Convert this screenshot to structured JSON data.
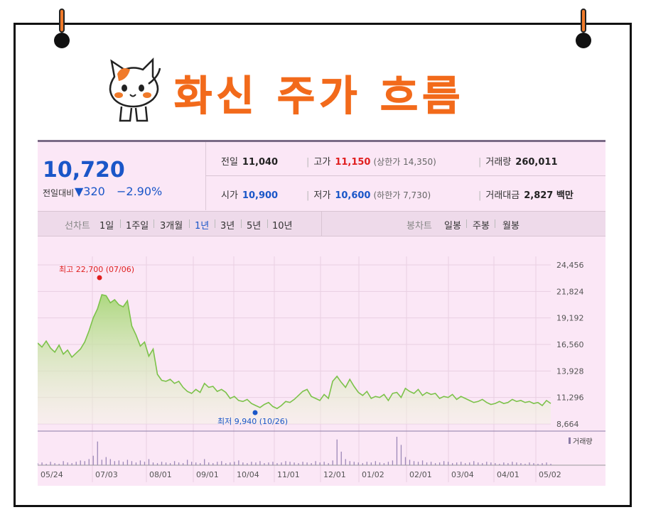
{
  "header": {
    "title": "화신 주가 흐름"
  },
  "stock": {
    "price": "10,720",
    "diff_label": "전일대비",
    "diff_value": "▼320",
    "diff_pct": "−2.90%",
    "prev_label": "전일",
    "prev_value": "11,040",
    "open_label": "시가",
    "open_value": "10,900",
    "high_label": "고가",
    "high_value": "11,150",
    "upper_limit": "(상한가 14,350)",
    "low_label": "저가",
    "low_value": "10,600",
    "lower_limit": "(하한가 7,730)",
    "volume_label": "거래량",
    "volume_value": "260,011",
    "amount_label": "거래대금",
    "amount_value": "2,827 백만"
  },
  "toolbar": {
    "line_label": "선차트",
    "periods": [
      "1일",
      "1주일",
      "3개월",
      "1년",
      "3년",
      "5년",
      "10년"
    ],
    "active_period": "1년",
    "candle_label": "봉차트",
    "candles": [
      "일봉",
      "주봉",
      "월봉"
    ]
  },
  "colors": {
    "up": "#e02020",
    "down": "#1a56c8",
    "line": "#7cc24a",
    "accent": "#f26a1b"
  },
  "chart_data": {
    "type": "area",
    "y_ticks": [
      "24,456",
      "21,824",
      "19,192",
      "16,560",
      "13,928",
      "11,296",
      "8,664"
    ],
    "ylim": [
      8664,
      24456
    ],
    "x_ticks": [
      "05/24",
      "07/03",
      "08/01",
      "09/01",
      "10/04",
      "11/01",
      "12/01",
      "01/02",
      "02/01",
      "03/04",
      "04/01",
      "05/02"
    ],
    "annotations": {
      "high": "최고 22,700 (07/06)",
      "low": "최저 9,940 (10/26)"
    },
    "volume_label": "거래량",
    "x": [
      0,
      1,
      2,
      3,
      4,
      5,
      6,
      7,
      8,
      9,
      10,
      11,
      12,
      13,
      14,
      15,
      16,
      17,
      18,
      19,
      20,
      21,
      22,
      23,
      24,
      25,
      26,
      27,
      28,
      29,
      30,
      31,
      32,
      33,
      34,
      35,
      36,
      37,
      38,
      39,
      40,
      41,
      42,
      43,
      44,
      45,
      46,
      47,
      48,
      49,
      50,
      51,
      52,
      53,
      54,
      55,
      56,
      57,
      58,
      59,
      60,
      61,
      62,
      63,
      64,
      65,
      66,
      67,
      68,
      69,
      70,
      71,
      72,
      73,
      74,
      75,
      76,
      77,
      78,
      79,
      80,
      81,
      82,
      83,
      84,
      85,
      86,
      87,
      88,
      89,
      90,
      91,
      92,
      93,
      94,
      95,
      96,
      97,
      98,
      99,
      100,
      101,
      102,
      103,
      104,
      105,
      106,
      107,
      108,
      109,
      110,
      111,
      112,
      113,
      114,
      115,
      116,
      117,
      118,
      119,
      120
    ],
    "values": [
      16700,
      16300,
      16900,
      16200,
      15800,
      16500,
      15600,
      16000,
      15300,
      15700,
      16100,
      16800,
      17900,
      19200,
      20100,
      21500,
      21400,
      20700,
      21000,
      20500,
      20300,
      20900,
      18400,
      17500,
      16400,
      16800,
      15400,
      16100,
      13600,
      13000,
      12900,
      13100,
      12700,
      12900,
      12300,
      11900,
      11700,
      12100,
      11800,
      12700,
      12300,
      12400,
      11900,
      12100,
      11800,
      11200,
      11400,
      11000,
      10900,
      11100,
      10700,
      10500,
      10300,
      10600,
      10800,
      10400,
      10200,
      10500,
      10900,
      10800,
      11100,
      11500,
      11900,
      12100,
      11400,
      11200,
      11000,
      11600,
      11200,
      12900,
      13400,
      12800,
      12300,
      13100,
      12400,
      11800,
      11500,
      11900,
      11200,
      11400,
      11300,
      11600,
      11000,
      11700,
      11800,
      11300,
      12200,
      11900,
      11700,
      12100,
      11500,
      11800,
      11600,
      11700,
      11200,
      11400,
      11300,
      11600,
      11100,
      11400,
      11200,
      11000,
      10800,
      10900,
      11100,
      10800,
      10600,
      10700,
      10900,
      10700,
      10800,
      11100,
      10900,
      11000,
      10800,
      10900,
      10700,
      10800,
      10500,
      11000,
      10700
    ],
    "volume": [
      3,
      4,
      2,
      5,
      3,
      2,
      6,
      4,
      3,
      5,
      7,
      6,
      9,
      14,
      35,
      8,
      12,
      9,
      6,
      7,
      5,
      8,
      6,
      4,
      7,
      5,
      9,
      4,
      3,
      5,
      4,
      3,
      6,
      4,
      3,
      8,
      5,
      4,
      3,
      9,
      4,
      3,
      5,
      6,
      3,
      4,
      5,
      7,
      4,
      3,
      5,
      4,
      6,
      3,
      4,
      5,
      3,
      4,
      6,
      5,
      4,
      3,
      5,
      4,
      3,
      6,
      4,
      5,
      3,
      7,
      38,
      20,
      9,
      6,
      5,
      4,
      3,
      5,
      4,
      6,
      4,
      3,
      5,
      7,
      42,
      30,
      12,
      8,
      6,
      5,
      7,
      4,
      5,
      3,
      4,
      6,
      5,
      3,
      4,
      5,
      3,
      4,
      6,
      4,
      3,
      5,
      4,
      3,
      2,
      4,
      3,
      5,
      4,
      3,
      2,
      4,
      3,
      2,
      3,
      4,
      2
    ]
  }
}
